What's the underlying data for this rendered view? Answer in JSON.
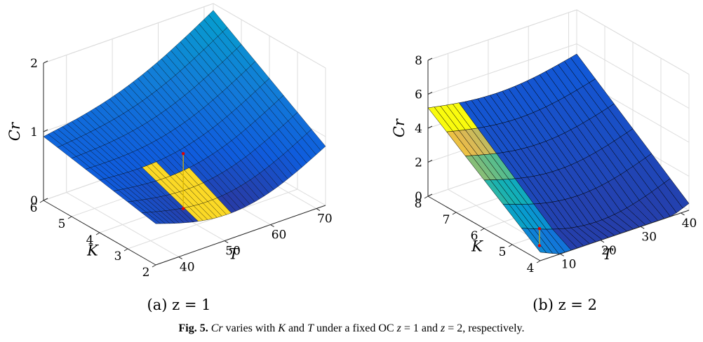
{
  "figure": {
    "caption_label": "Fig. 5.",
    "caption_parts": [
      "Cr",
      " varies with ",
      "K",
      " and ",
      "T",
      " under a fixed OC ",
      "z",
      " = 1 and ",
      "z",
      " = 2, respectively."
    ]
  },
  "colors": {
    "edge": "#000000",
    "point": "#e00000",
    "stem": "#d9b400"
  },
  "chart_data": [
    {
      "type": "surface",
      "subcaption": "(a)  z = 1",
      "xlabel": "K",
      "ylabel": "T",
      "zlabel": "Cr",
      "xlim": [
        2,
        6
      ],
      "ylim": [
        35,
        72
      ],
      "zlim": [
        0,
        2
      ],
      "x_ticks": [
        "2",
        "3",
        "4",
        "5",
        "6"
      ],
      "y_ticks": [
        "40",
        "50",
        "60",
        "70"
      ],
      "z_ticks": [
        "0",
        "1",
        "2"
      ],
      "grid": true,
      "point": {
        "K": 3.8,
        "T": 52,
        "Cr": 0.8
      },
      "corner_values": {
        "K6_T35": 0.93,
        "K2_T35": 0.6,
        "K2_T72": 0.86,
        "K6_T72": 1.9
      }
    },
    {
      "type": "surface",
      "subcaption": "(b)  z = 2",
      "xlabel": "K",
      "ylabel": "T",
      "zlabel": "Cr",
      "xlim": [
        4,
        8
      ],
      "ylim": [
        5,
        42
      ],
      "zlim": [
        0,
        8
      ],
      "x_ticks": [
        "4",
        "5",
        "6",
        "7",
        "8"
      ],
      "y_ticks": [
        "10",
        "20",
        "30",
        "40"
      ],
      "z_ticks": [
        "0",
        "2",
        "4",
        "6",
        "8"
      ],
      "grid": true,
      "point": {
        "K": 4.6,
        "T": 9,
        "Cr": 1.0
      },
      "corner_values": {
        "K8_T5": 5.2,
        "K4_T5": 0.5,
        "K4_T42": 0.4,
        "K8_T42": 5.4
      }
    }
  ]
}
